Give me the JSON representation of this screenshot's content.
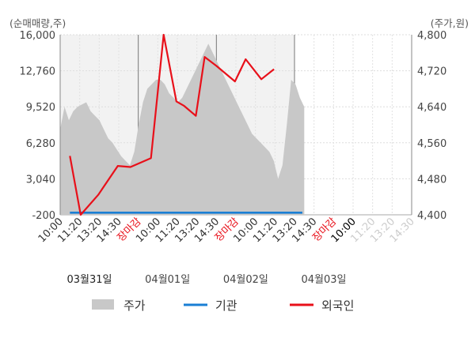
{
  "chart_data": {
    "type": "line",
    "left_axis": {
      "unit_label": "(순매매량,주)",
      "min": -200,
      "max": 16000,
      "ticks": [
        -200,
        3040,
        6280,
        9520,
        12760,
        16000
      ],
      "tick_labels": [
        "-200",
        "3,040",
        "6,280",
        "9,520",
        "12,760",
        "16,000"
      ]
    },
    "right_axis": {
      "unit_label": "(주가,원)",
      "min": 4400,
      "max": 4800,
      "ticks": [
        4400,
        4480,
        4560,
        4640,
        4720,
        4800
      ],
      "tick_labels": [
        "4,400",
        "4,480",
        "4,560",
        "4,640",
        "4,720",
        "4,800"
      ]
    },
    "x_tick_labels": [
      {
        "text": "10:00",
        "color": "#333333"
      },
      {
        "text": "11:20",
        "color": "#333333"
      },
      {
        "text": "13:20",
        "color": "#333333"
      },
      {
        "text": "14:30",
        "color": "#333333"
      },
      {
        "text": "장마감",
        "color": "#e8101a"
      },
      {
        "text": "10:00",
        "color": "#333333"
      },
      {
        "text": "11:20",
        "color": "#333333"
      },
      {
        "text": "13:20",
        "color": "#333333"
      },
      {
        "text": "14:30",
        "color": "#333333"
      },
      {
        "text": "장마감",
        "color": "#e8101a"
      },
      {
        "text": "10:00",
        "color": "#333333"
      },
      {
        "text": "11:20",
        "color": "#333333"
      },
      {
        "text": "13:20",
        "color": "#333333"
      },
      {
        "text": "14:30",
        "color": "#333333"
      },
      {
        "text": "장마감",
        "color": "#e8101a"
      },
      {
        "text": "10:00",
        "color": "#000000"
      },
      {
        "text": "11:20",
        "color": "#cccccc"
      },
      {
        "text": "13:20",
        "color": "#cccccc"
      },
      {
        "text": "14:30",
        "color": "#cccccc"
      }
    ],
    "date_labels": [
      {
        "text": "03월31일",
        "color": "#222222"
      },
      {
        "text": "04월01일",
        "color": "#444444"
      },
      {
        "text": "04월02일",
        "color": "#444444"
      },
      {
        "text": "04월03일",
        "color": "#444444"
      }
    ],
    "day_boundaries_slot": [
      4,
      8,
      12
    ],
    "plot_area_slot_range": [
      0,
      18
    ],
    "shaded_until_slot": 12,
    "price_area": {
      "name": "주가",
      "color": "#c8c8c8",
      "x_start_slot": 0,
      "x_end_slot": 12.5,
      "values": [
        4590,
        4640,
        4610,
        4630,
        4640,
        4645,
        4650,
        4630,
        4620,
        4610,
        4590,
        4570,
        4560,
        4545,
        4530,
        4520,
        4510,
        4540,
        4600,
        4650,
        4680,
        4690,
        4700,
        4700,
        4690,
        4670,
        4660,
        4650,
        4660,
        4680,
        4700,
        4720,
        4740,
        4760,
        4780,
        4760,
        4740,
        4720,
        4700,
        4680,
        4660,
        4640,
        4620,
        4600,
        4580,
        4570,
        4560,
        4550,
        4540,
        4520,
        4480,
        4510,
        4600,
        4700,
        4690,
        4660,
        4640
      ]
    },
    "series": [
      {
        "name": "기관",
        "color": "#1a7fd4",
        "axis": "left",
        "x_slots": [
          0.5,
          12.4
        ],
        "values": [
          -10,
          -10
        ]
      },
      {
        "name": "외국인",
        "color": "#e8101a",
        "axis": "left",
        "x_slots": [
          0.5,
          1.05,
          1.95,
          2.95,
          3.6,
          4.65,
          5.3,
          5.95,
          6.35,
          6.95,
          7.4,
          8.0,
          8.95,
          9.5,
          10.3,
          10.95
        ],
        "values": [
          5100,
          -200,
          1600,
          4200,
          4100,
          4900,
          16000,
          10000,
          9600,
          8700,
          14000,
          13200,
          11800,
          13800,
          12000,
          12900
        ]
      }
    ],
    "legend": [
      {
        "label": "주가",
        "color": "#c8c8c8",
        "kind": "area"
      },
      {
        "label": "기관",
        "color": "#1a7fd4",
        "kind": "line"
      },
      {
        "label": "외국인",
        "color": "#e8101a",
        "kind": "line"
      }
    ],
    "grid": true
  }
}
